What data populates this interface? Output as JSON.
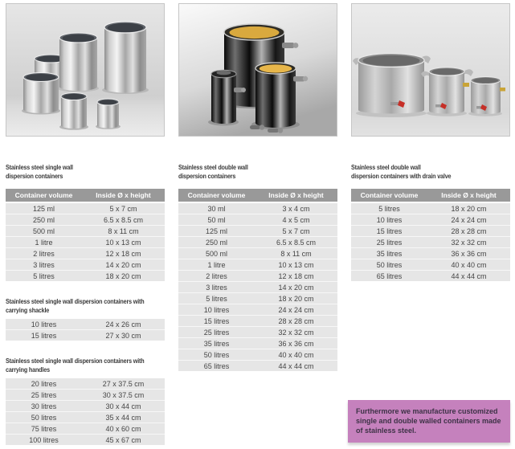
{
  "colors": {
    "table_header_bg": "#999999",
    "table_header_text": "#ffffff",
    "table_row_bg": "#e6e6e6",
    "table_text": "#454545",
    "heading_text": "#3a3a3a",
    "note_bg": "#c581bd",
    "note_text": "#3d3246"
  },
  "table_header": [
    "Container volume",
    "Inside Ø x height"
  ],
  "columns": [
    {
      "photo": "single-wall-containers-photo",
      "sections": [
        {
          "title": "Stainless steel single wall\ndispersion containers",
          "show_header": true,
          "rows": [
            [
              "125 ml",
              "5 x 7 cm"
            ],
            [
              "250 ml",
              "6.5 x 8.5 cm"
            ],
            [
              "500 ml",
              "8 x 11 cm"
            ],
            [
              "1 litre",
              "10 x 13 cm"
            ],
            [
              "2 litres",
              "12 x 18 cm"
            ],
            [
              "3 litres",
              "14 x 20 cm"
            ],
            [
              "5 litres",
              "18 x 20 cm"
            ]
          ]
        },
        {
          "title": "Stainless steel single wall dispersion containers with\ncarrying shackle",
          "show_header": false,
          "rows": [
            [
              "10 litres",
              "24 x 26 cm"
            ],
            [
              "15 litres",
              "27 x 30 cm"
            ]
          ]
        },
        {
          "title": "Stainless steel single wall dispersion containers with\ncarrying handles",
          "show_header": false,
          "rows": [
            [
              "20 litres",
              "27 x 37.5 cm"
            ],
            [
              "25 litres",
              "30 x 37.5 cm"
            ],
            [
              "30 litres",
              "30 x 44 cm"
            ],
            [
              "50 litres",
              "35 x 44 cm"
            ],
            [
              "75 litres",
              "40 x 60 cm"
            ],
            [
              "100 litres",
              "45 x 67 cm"
            ]
          ]
        }
      ]
    },
    {
      "photo": "double-wall-containers-photo",
      "sections": [
        {
          "title": "Stainless steel double wall\ndispersion containers",
          "show_header": true,
          "rows": [
            [
              "30 ml",
              "3 x 4 cm"
            ],
            [
              "50 ml",
              "4 x 5 cm"
            ],
            [
              "125 ml",
              "5 x 7 cm"
            ],
            [
              "250 ml",
              "6.5 x 8.5 cm"
            ],
            [
              "500 ml",
              "8 x 11 cm"
            ],
            [
              "1 litre",
              "10 x 13 cm"
            ],
            [
              "2 litres",
              "12 x 18 cm"
            ],
            [
              "3 litres",
              "14 x 20 cm"
            ],
            [
              "5 litres",
              "18 x 20 cm"
            ],
            [
              "10 litres",
              "24 x 24 cm"
            ],
            [
              "15 litres",
              "28 x 28 cm"
            ],
            [
              "25 litres",
              "32 x 32 cm"
            ],
            [
              "35 litres",
              "36 x 36 cm"
            ],
            [
              "50 litres",
              "40 x 40 cm"
            ],
            [
              "65 litres",
              "44 x 44 cm"
            ]
          ]
        }
      ]
    },
    {
      "photo": "double-wall-drain-valve-containers-photo",
      "sections": [
        {
          "title": "Stainless steel double wall\ndispersion containers with drain valve",
          "show_header": true,
          "rows": [
            [
              "5 litres",
              "18 x 20 cm"
            ],
            [
              "10 litres",
              "24 x 24 cm"
            ],
            [
              "15 litres",
              "28 x 28 cm"
            ],
            [
              "25 litres",
              "32 x 32 cm"
            ],
            [
              "35 litres",
              "36 x 36 cm"
            ],
            [
              "50 litres",
              "40 x 40 cm"
            ],
            [
              "65 litres",
              "44 x 44 cm"
            ]
          ]
        }
      ]
    }
  ],
  "note": {
    "text": "Furthermore we manufacture customized single and double walled containers made of stainless steel."
  }
}
